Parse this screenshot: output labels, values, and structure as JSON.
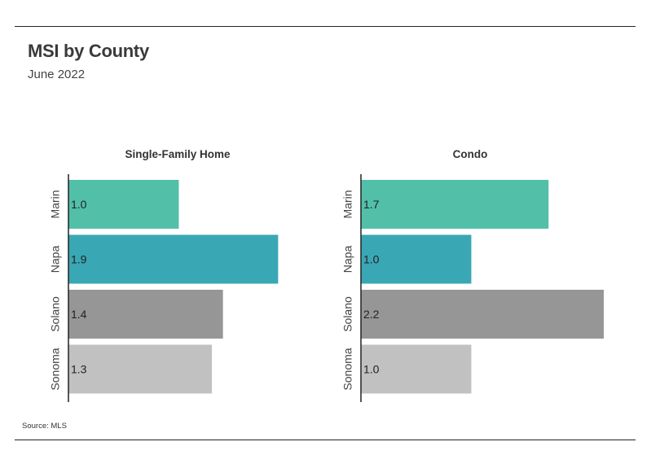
{
  "header": {
    "title": "MSI by County",
    "subtitle": "June 2022"
  },
  "footer": {
    "source": "Source:  MLS"
  },
  "chart_data": [
    {
      "type": "bar",
      "orientation": "horizontal",
      "title": "Single-Family Home",
      "categories": [
        "Marin",
        "Napa",
        "Solano",
        "Sonoma"
      ],
      "values": [
        1.0,
        1.9,
        1.4,
        1.3
      ],
      "value_labels": [
        "1.0",
        "1.9",
        "1.4",
        "1.3"
      ],
      "xlim": [
        0,
        2.2
      ],
      "grid": false,
      "colors": [
        "#52bfa9",
        "#3aa7b4",
        "#969696",
        "#c1c1c1"
      ]
    },
    {
      "type": "bar",
      "orientation": "horizontal",
      "title": "Condo",
      "categories": [
        "Marin",
        "Napa",
        "Solano",
        "Sonoma"
      ],
      "values": [
        1.7,
        1.0,
        2.2,
        1.0
      ],
      "value_labels": [
        "1.7",
        "1.0",
        "2.2",
        "1.0"
      ],
      "xlim": [
        0,
        2.2
      ],
      "grid": false,
      "colors": [
        "#52bfa9",
        "#3aa7b4",
        "#969696",
        "#c1c1c1"
      ]
    }
  ]
}
